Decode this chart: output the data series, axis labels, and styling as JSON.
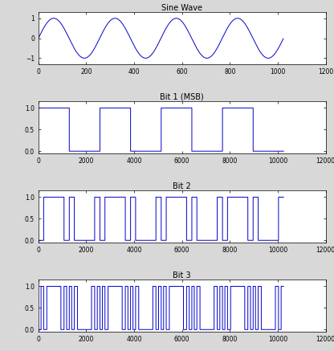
{
  "sine_freq": 4,
  "sine_n_samples": 1024,
  "sine_xlim": [
    0,
    1200
  ],
  "sine_ylim": [
    -1.3,
    1.3
  ],
  "sine_yticks": [
    -1,
    0,
    1
  ],
  "sine_xticks": [
    0,
    200,
    400,
    600,
    800,
    1000,
    1200
  ],
  "sine_title": "Sine Wave",
  "bit_xlim": [
    0,
    12000
  ],
  "bit_ylim": [
    -0.05,
    1.15
  ],
  "bit_yticks": [
    0,
    0.5,
    1
  ],
  "bit_xticks": [
    0,
    2000,
    4000,
    6000,
    8000,
    10000,
    12000
  ],
  "bit1_title": "Bit 1 (MSB)",
  "bit2_title": "Bit 2",
  "bit3_title": "Bit 3",
  "line_color": "#0000CC",
  "bg_color": "#d8d8d8",
  "axes_bg": "#ffffff",
  "fig_width": 4.16,
  "fig_height": 4.37,
  "dpi": 100,
  "n_bits": 3,
  "n_levels": 8,
  "bit_n_samples": 10240,
  "title_fontsize": 7,
  "tick_fontsize": 5.5,
  "linewidth": 0.7
}
